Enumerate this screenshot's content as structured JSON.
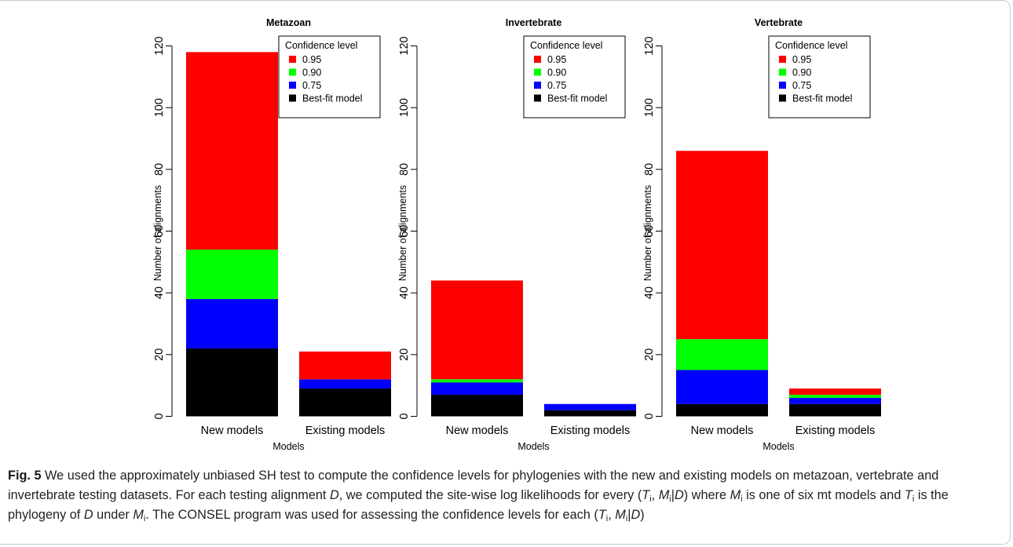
{
  "chart_data": [
    {
      "type": "bar",
      "stacked": true,
      "title": "Metazoan",
      "xlabel": "Models",
      "ylabel": "Number of alignments",
      "categories": [
        "New models",
        "Existing models"
      ],
      "ylim": [
        0,
        120
      ],
      "yticks": [
        0,
        20,
        40,
        60,
        80,
        100,
        120
      ],
      "series": [
        {
          "name": "Best-fit model",
          "values": [
            22,
            9
          ]
        },
        {
          "name": "0.75",
          "values": [
            16,
            3
          ]
        },
        {
          "name": "0.90",
          "values": [
            16,
            0
          ]
        },
        {
          "name": "0.95",
          "values": [
            64,
            9
          ]
        }
      ],
      "legend": {
        "title": "Confidence level",
        "position": "top-right"
      }
    },
    {
      "type": "bar",
      "stacked": true,
      "title": "Invertebrate",
      "xlabel": "Models",
      "ylabel": "Number of alignments",
      "categories": [
        "New models",
        "Existing models"
      ],
      "ylim": [
        0,
        120
      ],
      "yticks": [
        0,
        20,
        40,
        60,
        80,
        100,
        120
      ],
      "series": [
        {
          "name": "Best-fit model",
          "values": [
            7,
            2
          ]
        },
        {
          "name": "0.75",
          "values": [
            4,
            2
          ]
        },
        {
          "name": "0.90",
          "values": [
            1,
            0
          ]
        },
        {
          "name": "0.95",
          "values": [
            32,
            0
          ]
        }
      ],
      "legend": {
        "title": "Confidence level",
        "position": "top-right"
      }
    },
    {
      "type": "bar",
      "stacked": true,
      "title": "Vertebrate",
      "xlabel": "Models",
      "ylabel": "Number of alignments",
      "categories": [
        "New models",
        "Existing models"
      ],
      "ylim": [
        0,
        120
      ],
      "yticks": [
        0,
        20,
        40,
        60,
        80,
        100,
        120
      ],
      "series": [
        {
          "name": "Best-fit model",
          "values": [
            4,
            4
          ]
        },
        {
          "name": "0.75",
          "values": [
            11,
            2
          ]
        },
        {
          "name": "0.90",
          "values": [
            10,
            1
          ]
        },
        {
          "name": "0.95",
          "values": [
            61,
            2
          ]
        }
      ],
      "legend": {
        "title": "Confidence level",
        "position": "top-right"
      }
    }
  ],
  "colors": {
    "0.95": "#ff0000",
    "0.90": "#00ff00",
    "0.75": "#0000ff",
    "Best-fit model": "#000000"
  },
  "legend_order": [
    "0.95",
    "0.90",
    "0.75",
    "Best-fit model"
  ],
  "caption": {
    "label": "Fig. 5",
    "text_1": " We used the approximately unbiased SH test to compute the confidence levels for phylogenies with the new and existing models on metazoan, vertebrate and invertebrate testing datasets. For each testing alignment ",
    "text_2": ", we computed the site-wise log likelihoods for every (",
    "text_3": " where ",
    "text_4": " is one of six mt models and ",
    "text_5": " is the phylogeny of ",
    "text_6": " under ",
    "text_7": ". The CONSEL program was used for assessing the confidence levels for each (",
    "text_8": ")",
    "var_D": "D",
    "var_T": "T",
    "var_M": "M",
    "sub_i": "i",
    "sep_comma": ", ",
    "pipe": "|",
    "close_paren": ")"
  }
}
